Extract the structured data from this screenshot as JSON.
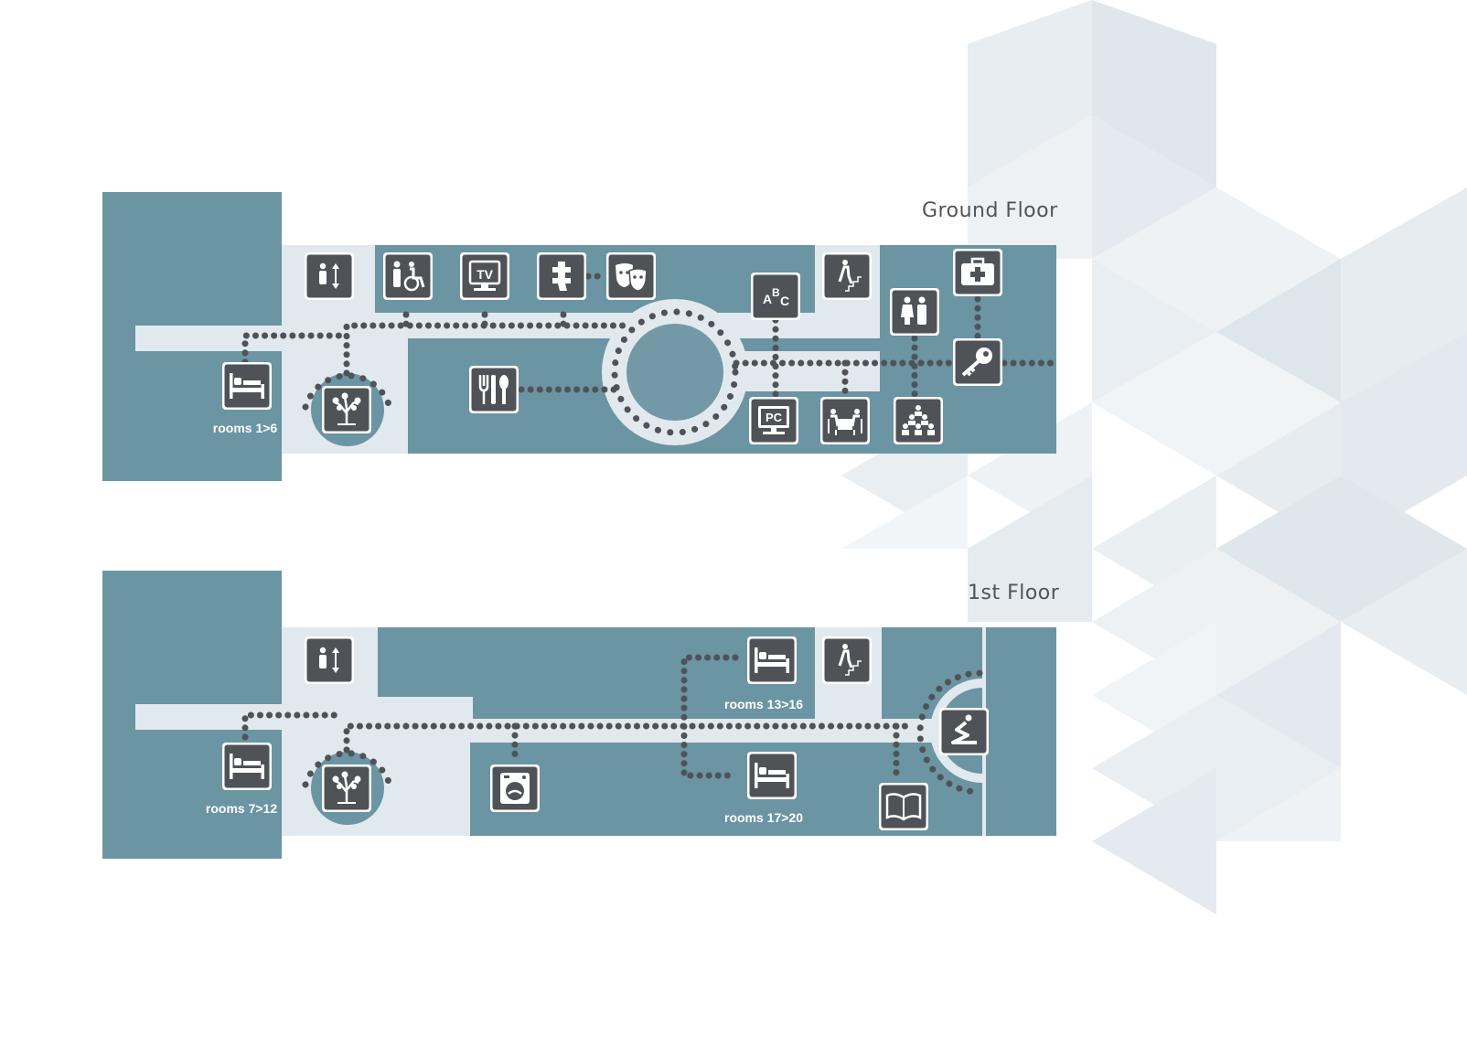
{
  "floors": [
    {
      "title": "Ground Floor",
      "room_labels": [
        "rooms 1>6"
      ],
      "icons": [
        "bed-icon",
        "garden-tree-icon",
        "elevator-icon",
        "restroom-accessible-icon",
        "tv-icon",
        "kids-play-icon",
        "theater-masks-icon",
        "abc-reading-icon",
        "stairs-icon",
        "restroom-icon",
        "first-aid-icon",
        "reception-key-icon",
        "restaurant-icon",
        "pc-icon",
        "meeting-table-icon",
        "conference-room-icon"
      ]
    },
    {
      "title": "1st Floor",
      "room_labels": [
        "rooms 7>12",
        "rooms 13>16",
        "rooms 17>20"
      ],
      "icons": [
        "bed-icon",
        "garden-tree-icon",
        "elevator-icon",
        "bed-icon",
        "stairs-icon",
        "bed-icon",
        "laundry-icon",
        "prayer-room-icon",
        "library-book-icon"
      ]
    }
  ],
  "colors": {
    "wall": "#6b95a3",
    "corridor": "#e2e9ee",
    "icon": "#4f5358",
    "path_dots": "#4f5358",
    "text": "#4f555a",
    "hexagon_bg": "#dfe7ed"
  }
}
